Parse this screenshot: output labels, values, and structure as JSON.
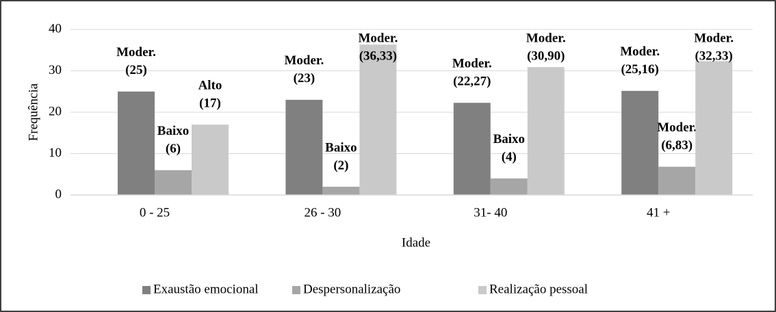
{
  "chart_data": {
    "type": "bar",
    "categories": [
      "0 - 25",
      "26 - 30",
      "31- 40",
      "41 +"
    ],
    "series": [
      {
        "name": "Exaustão emocional",
        "color": "#808080",
        "values": [
          25,
          23,
          22.27,
          25.16
        ],
        "levels": [
          "Moder.",
          "Moder.",
          "Moder.",
          "Moder."
        ],
        "value_labels": [
          "(25)",
          "(23)",
          "(22,27)",
          "(25,16)"
        ]
      },
      {
        "name": "Despersonalização",
        "color": "#a6a6a6",
        "values": [
          6,
          2,
          4,
          6.83
        ],
        "levels": [
          "Baixo",
          "Baixo",
          "Baixo",
          "Moder."
        ],
        "value_labels": [
          "(6)",
          "(2)",
          "(4)",
          "(6,83)"
        ]
      },
      {
        "name": "Realização pessoal",
        "color": "#c9c9c9",
        "values": [
          17,
          36.33,
          30.9,
          32.33
        ],
        "levels": [
          "Alto",
          "Moder.",
          "Moder.",
          "Moder."
        ],
        "value_labels": [
          "(17)",
          "(36,33)",
          "(30,90)",
          "(32,33)"
        ]
      }
    ],
    "x_label": "Idade",
    "y_label": "Frequência",
    "ylim": [
      0,
      40
    ],
    "yticks": [
      0,
      10,
      20,
      30,
      40
    ],
    "grid": true,
    "legend": "bottom"
  }
}
